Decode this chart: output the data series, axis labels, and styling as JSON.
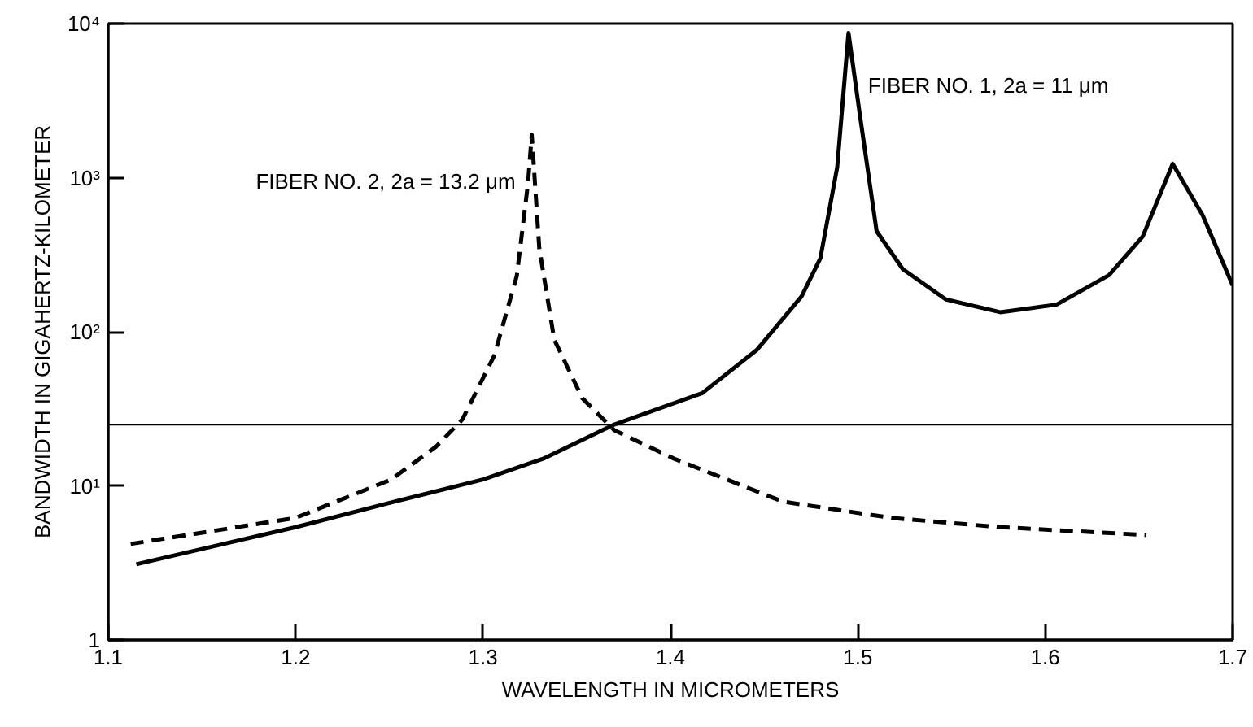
{
  "chart_data": {
    "type": "line",
    "xlabel": "WAVELENGTH IN MICROMETERS",
    "ylabel": "BANDWIDTH IN GIGAHERTZ-KILOMETER",
    "log": "y",
    "grid": false,
    "marker": "none",
    "xlim": [
      1.1,
      1.7
    ],
    "xticks": [
      1.1,
      1.2,
      1.3,
      1.4,
      1.5,
      1.6,
      1.7
    ],
    "ylim": [
      1,
      10000
    ],
    "yticks": [
      1,
      {
        "value": 10,
        "label": "10¹"
      },
      {
        "value": 100,
        "label": "10²"
      },
      {
        "value": 1000,
        "label": "10³"
      },
      {
        "value": 10000,
        "label": "10⁴"
      }
    ],
    "series": [
      {
        "name": "FIBER NO. 1, 2a = 11 μm",
        "color": "#000000",
        "line_style": "solid",
        "x": [
          1.115,
          1.2,
          1.251,
          1.3,
          1.332,
          1.37,
          1.417,
          1.446,
          1.47,
          1.48,
          1.489,
          1.495,
          1.501,
          1.51,
          1.524,
          1.547,
          1.576,
          1.606,
          1.634,
          1.652,
          1.668,
          1.684,
          1.7
        ],
        "values": [
          3.1,
          5.4,
          7.8,
          11,
          15,
          25,
          40,
          76,
          170,
          300,
          1170,
          8700,
          2600,
          450,
          255,
          162,
          134,
          150,
          233,
          415,
          1230,
          570,
          200
        ]
      },
      {
        "name": "FIBER NO. 2, 2a = 13.2 μm",
        "color": "#000000",
        "line_style": "dashed",
        "x": [
          1.112,
          1.2,
          1.251,
          1.275,
          1.289,
          1.306,
          1.318,
          1.324,
          1.326,
          1.33,
          1.338,
          1.353,
          1.37,
          1.402,
          1.46,
          1.518,
          1.576,
          1.654
        ],
        "values": [
          4.2,
          6.2,
          11,
          18,
          27,
          70,
          230,
          920,
          1900,
          350,
          89,
          37,
          23,
          15,
          7.9,
          6.2,
          5.4,
          4.8
        ]
      }
    ],
    "ref_lines": [
      {
        "axis": "y",
        "value": 25,
        "color": "#000000"
      }
    ]
  }
}
